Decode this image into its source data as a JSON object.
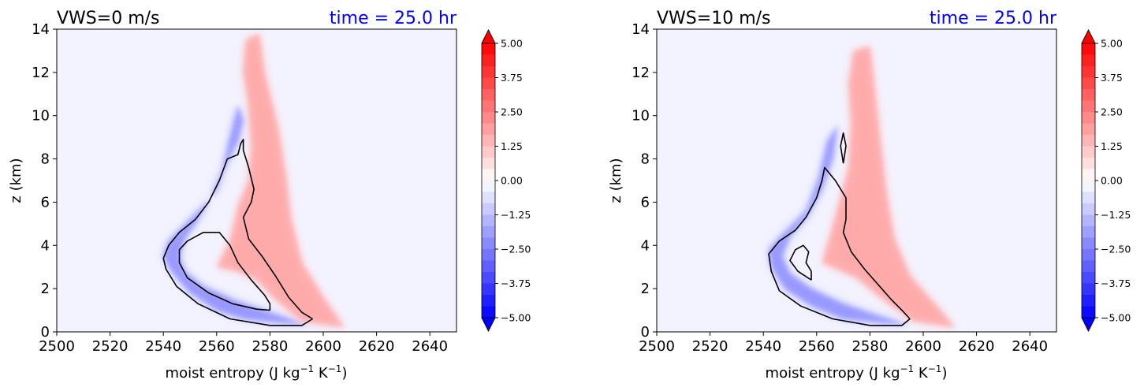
{
  "chart_data": [
    {
      "type": "contourf",
      "title_left": "VWS=0 m/s",
      "title_right": "time = 25.0 hr",
      "title_right_color": "#0000ff",
      "xlabel": "moist entropy (J kg",
      "xlabel_unit_sup1": "−1",
      "xlabel_mid": " K",
      "xlabel_unit_sup2": "−1",
      "xlabel_end": ")",
      "ylabel": "z (km)",
      "xlim": [
        2500,
        2650
      ],
      "ylim": [
        0,
        14
      ],
      "xticks": [
        "2500",
        "2520",
        "2540",
        "2560",
        "2580",
        "2600",
        "2620",
        "2640"
      ],
      "yticks": [
        "0",
        "2",
        "4",
        "6",
        "8",
        "10",
        "12",
        "14"
      ],
      "colorbar_ticks": [
        "5.00",
        "3.75",
        "2.50",
        "1.25",
        "0.00",
        "−1.25",
        "−2.50",
        "−3.75",
        "−5.00"
      ],
      "negative_lobe": [
        [
          2595,
          0.3
        ],
        [
          2585,
          0.4
        ],
        [
          2570,
          0.6
        ],
        [
          2560,
          1.0
        ],
        [
          2550,
          1.8
        ],
        [
          2543,
          2.8
        ],
        [
          2540,
          3.5
        ],
        [
          2542,
          4.2
        ],
        [
          2550,
          5.2
        ],
        [
          2560,
          6.5
        ],
        [
          2564,
          7.8
        ],
        [
          2568,
          8.8
        ],
        [
          2570,
          9.8
        ],
        [
          2568,
          10.5
        ],
        [
          2565,
          9.0
        ],
        [
          2562,
          7.5
        ],
        [
          2557,
          6.0
        ],
        [
          2552,
          5.0
        ],
        [
          2548,
          4.3
        ],
        [
          2546,
          3.5
        ],
        [
          2548,
          2.8
        ],
        [
          2555,
          2.1
        ],
        [
          2568,
          1.4
        ],
        [
          2580,
          0.9
        ],
        [
          2590,
          0.5
        ]
      ],
      "positive_lobe": [
        [
          2560,
          3.0
        ],
        [
          2565,
          4.2
        ],
        [
          2568,
          5.8
        ],
        [
          2572,
          7.0
        ],
        [
          2573,
          8.5
        ],
        [
          2572,
          10.5
        ],
        [
          2570,
          12.0
        ],
        [
          2571,
          13.5
        ],
        [
          2576,
          13.8
        ],
        [
          2578,
          12.0
        ],
        [
          2583,
          9.5
        ],
        [
          2586,
          7.2
        ],
        [
          2588,
          5.2
        ],
        [
          2592,
          3.2
        ],
        [
          2600,
          1.6
        ],
        [
          2608,
          0.2
        ],
        [
          2592,
          0.5
        ],
        [
          2582,
          1.5
        ],
        [
          2575,
          2.4
        ],
        [
          2568,
          2.8
        ]
      ],
      "contour_outer": [
        [
          2596,
          0.6
        ],
        [
          2592,
          0.3
        ],
        [
          2580,
          0.3
        ],
        [
          2565,
          0.6
        ],
        [
          2553,
          1.3
        ],
        [
          2545,
          2.1
        ],
        [
          2541,
          2.9
        ],
        [
          2540,
          3.4
        ],
        [
          2542,
          4.0
        ],
        [
          2546,
          4.6
        ],
        [
          2552,
          5.2
        ],
        [
          2557,
          6.0
        ],
        [
          2561,
          7.0
        ],
        [
          2564,
          8.0
        ],
        [
          2568,
          8.2
        ],
        [
          2569,
          8.7
        ],
        [
          2570,
          8.9
        ],
        [
          2570,
          8.4
        ],
        [
          2572,
          7.6
        ],
        [
          2574,
          6.6
        ],
        [
          2573,
          6.0
        ],
        [
          2570,
          5.3
        ],
        [
          2572,
          4.3
        ],
        [
          2577,
          3.5
        ],
        [
          2582,
          2.6
        ],
        [
          2587,
          1.6
        ],
        [
          2592,
          0.9
        ],
        [
          2596,
          0.6
        ]
      ],
      "contour_inner": [
        [
          2580,
          1.0
        ],
        [
          2575,
          1.05
        ],
        [
          2566,
          1.3
        ],
        [
          2557,
          1.8
        ],
        [
          2549,
          2.5
        ],
        [
          2546,
          3.2
        ],
        [
          2546,
          3.8
        ],
        [
          2549,
          4.2
        ],
        [
          2555,
          4.6
        ],
        [
          2561,
          4.6
        ],
        [
          2565,
          4.0
        ],
        [
          2568,
          3.2
        ],
        [
          2573,
          2.4
        ],
        [
          2578,
          1.7
        ],
        [
          2580,
          1.3
        ],
        [
          2580,
          1.0
        ]
      ]
    },
    {
      "type": "contourf",
      "title_left": "VWS=10 m/s",
      "title_right": "time = 25.0 hr",
      "title_right_color": "#0000ff",
      "xlabel": "moist entropy (J kg",
      "xlabel_unit_sup1": "−1",
      "xlabel_mid": " K",
      "xlabel_unit_sup2": "−1",
      "xlabel_end": ")",
      "ylabel": "z (km)",
      "xlim": [
        2500,
        2650
      ],
      "ylim": [
        0,
        14
      ],
      "xticks": [
        "2500",
        "2520",
        "2540",
        "2560",
        "2580",
        "2600",
        "2620",
        "2640"
      ],
      "yticks": [
        "0",
        "2",
        "4",
        "6",
        "8",
        "10",
        "12",
        "14"
      ],
      "colorbar_ticks": [
        "5.00",
        "3.75",
        "2.50",
        "1.25",
        "0.00",
        "−1.25",
        "−2.50",
        "−3.75",
        "−5.00"
      ],
      "negative_lobe": [
        [
          2595,
          0.3
        ],
        [
          2585,
          0.4
        ],
        [
          2570,
          0.6
        ],
        [
          2558,
          1.2
        ],
        [
          2548,
          2.0
        ],
        [
          2543,
          3.0
        ],
        [
          2542,
          3.8
        ],
        [
          2548,
          4.6
        ],
        [
          2556,
          5.6
        ],
        [
          2561,
          7.2
        ],
        [
          2564,
          8.8
        ],
        [
          2568,
          9.6
        ],
        [
          2566,
          8.0
        ],
        [
          2562,
          6.6
        ],
        [
          2557,
          5.4
        ],
        [
          2550,
          4.4
        ],
        [
          2547,
          3.5
        ],
        [
          2550,
          2.7
        ],
        [
          2558,
          2.0
        ],
        [
          2570,
          1.3
        ],
        [
          2582,
          0.8
        ],
        [
          2590,
          0.5
        ]
      ],
      "positive_lobe": [
        [
          2562,
          3.2
        ],
        [
          2565,
          4.4
        ],
        [
          2569,
          6.2
        ],
        [
          2572,
          7.6
        ],
        [
          2573,
          9.6
        ],
        [
          2572,
          11.5
        ],
        [
          2574,
          13.0
        ],
        [
          2580,
          13.2
        ],
        [
          2582,
          11.0
        ],
        [
          2584,
          8.8
        ],
        [
          2586,
          6.6
        ],
        [
          2589,
          4.4
        ],
        [
          2595,
          2.6
        ],
        [
          2605,
          1.2
        ],
        [
          2612,
          0.2
        ],
        [
          2596,
          0.5
        ],
        [
          2584,
          1.6
        ],
        [
          2575,
          2.5
        ],
        [
          2566,
          3.0
        ]
      ],
      "contour_outer": [
        [
          2595,
          0.6
        ],
        [
          2592,
          0.3
        ],
        [
          2580,
          0.3
        ],
        [
          2566,
          0.6
        ],
        [
          2554,
          1.2
        ],
        [
          2546,
          1.9
        ],
        [
          2543,
          2.8
        ],
        [
          2542,
          3.6
        ],
        [
          2546,
          4.2
        ],
        [
          2552,
          4.7
        ],
        [
          2556,
          5.3
        ],
        [
          2560,
          6.2
        ],
        [
          2562,
          7.0
        ],
        [
          2563,
          7.6
        ],
        [
          2567,
          7.0
        ],
        [
          2571,
          6.2
        ],
        [
          2571,
          5.2
        ],
        [
          2570,
          4.6
        ],
        [
          2573,
          3.7
        ],
        [
          2578,
          2.9
        ],
        [
          2583,
          2.2
        ],
        [
          2588,
          1.5
        ],
        [
          2592,
          1.0
        ],
        [
          2595,
          0.6
        ]
      ],
      "contour_inner": [
        [
          2558,
          2.4
        ],
        [
          2553,
          2.8
        ],
        [
          2550,
          3.3
        ],
        [
          2552,
          3.8
        ],
        [
          2555,
          4.0
        ],
        [
          2557,
          3.7
        ],
        [
          2556,
          3.2
        ],
        [
          2558,
          2.8
        ],
        [
          2558,
          2.4
        ]
      ],
      "contour_small": [
        [
          2570,
          7.8
        ],
        [
          2569,
          8.6
        ],
        [
          2570,
          9.2
        ],
        [
          2571,
          8.6
        ],
        [
          2570,
          7.8
        ]
      ]
    }
  ]
}
